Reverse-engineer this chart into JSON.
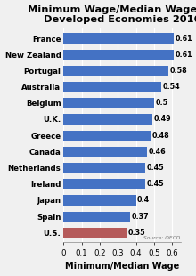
{
  "title": "Minimum Wage/Median Wage for\nDeveloped Economies 2016",
  "xlabel": "Minimum/Median Wage",
  "countries": [
    "U.S.",
    "Spain",
    "Japan",
    "Ireland",
    "Netherlands",
    "Canada",
    "Greece",
    "U.K.",
    "Belgium",
    "Australia",
    "Portugal",
    "New Zealand",
    "France"
  ],
  "values": [
    0.35,
    0.37,
    0.4,
    0.45,
    0.45,
    0.46,
    0.48,
    0.49,
    0.5,
    0.54,
    0.58,
    0.61,
    0.61
  ],
  "bar_colors": [
    "#B55A5A",
    "#4472C4",
    "#4472C4",
    "#4472C4",
    "#4472C4",
    "#4472C4",
    "#4472C4",
    "#4472C4",
    "#4472C4",
    "#4472C4",
    "#4472C4",
    "#4472C4",
    "#4472C4"
  ],
  "value_labels": [
    "0.35",
    "0.37",
    "0.4",
    "0.45",
    "0.45",
    "0.46",
    "0.48",
    "0.49",
    "0.5",
    "0.54",
    "0.58",
    "0.61",
    "0.61"
  ],
  "xlim": [
    0,
    0.65
  ],
  "xticks": [
    0,
    0.1,
    0.2,
    0.3,
    0.4,
    0.5,
    0.6
  ],
  "xtick_labels": [
    "0",
    "0.1",
    "0.2",
    "0.3",
    "0.4",
    "0.5",
    "0.6"
  ],
  "source_text": "Source: OECD",
  "background_color": "#F0F0F0",
  "title_fontsize": 8.2,
  "label_fontsize": 6.2,
  "value_fontsize": 5.8,
  "xlabel_fontsize": 7.0,
  "bar_height": 0.62
}
